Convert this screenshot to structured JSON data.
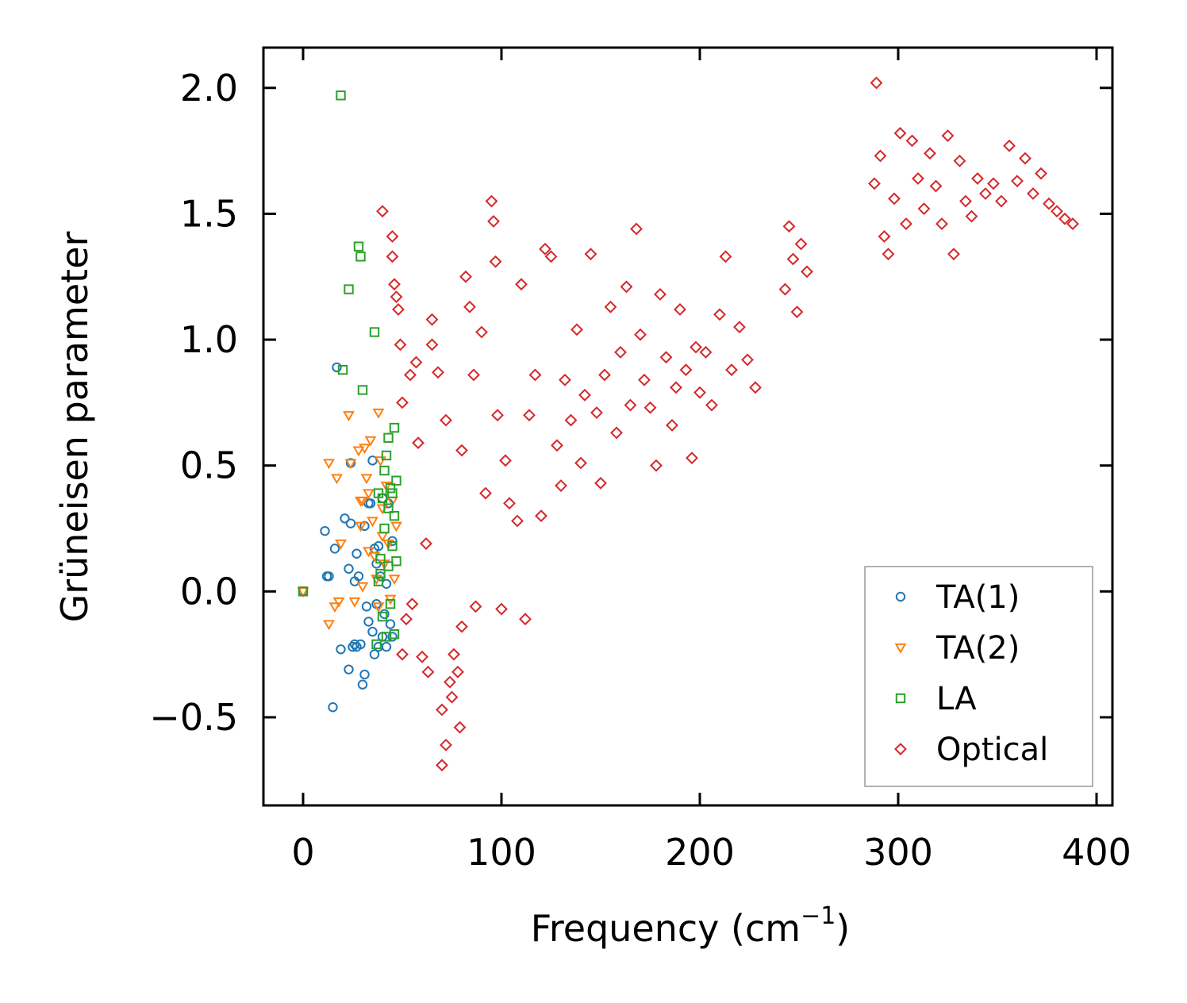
{
  "chart_data": {
    "type": "scatter",
    "title": "",
    "xlabel": "Frequency (cm",
    "xlabel_sup": "−1",
    "xlabel_close": ")",
    "ylabel": "Grüneisen parameter",
    "xlim": [
      -20,
      408
    ],
    "ylim": [
      -0.85,
      2.16
    ],
    "xticks": [
      0,
      100,
      200,
      300,
      400
    ],
    "xtick_labels": [
      "0",
      "100",
      "200",
      "300",
      "400"
    ],
    "yticks": [
      -0.5,
      0.0,
      0.5,
      1.0,
      1.5,
      2.0
    ],
    "ytick_labels": [
      "−0.5",
      "0.0",
      "0.5",
      "1.0",
      "1.5",
      "2.0"
    ],
    "grid": false,
    "legend_position": "lower-right",
    "series": [
      {
        "name": "TA(1)",
        "marker": "circle",
        "color": "#1f77b4",
        "points": [
          [
            0,
            0.0
          ],
          [
            11,
            0.24
          ],
          [
            12,
            0.06
          ],
          [
            13,
            0.06
          ],
          [
            15,
            -0.46
          ],
          [
            16,
            0.17
          ],
          [
            17,
            0.89
          ],
          [
            19,
            -0.23
          ],
          [
            21,
            0.29
          ],
          [
            23,
            0.09
          ],
          [
            23,
            -0.31
          ],
          [
            24,
            0.51
          ],
          [
            24,
            0.27
          ],
          [
            25,
            -0.22
          ],
          [
            26,
            0.04
          ],
          [
            26,
            -0.21
          ],
          [
            27,
            0.15
          ],
          [
            27,
            -0.22
          ],
          [
            28,
            0.06
          ],
          [
            29,
            -0.21
          ],
          [
            30,
            -0.37
          ],
          [
            31,
            0.26
          ],
          [
            31,
            -0.33
          ],
          [
            32,
            -0.06
          ],
          [
            33,
            0.35
          ],
          [
            33,
            -0.12
          ],
          [
            34,
            0.35
          ],
          [
            35,
            -0.16
          ],
          [
            35,
            0.52
          ],
          [
            36,
            0.17
          ],
          [
            36,
            -0.25
          ],
          [
            37,
            0.11
          ],
          [
            37,
            -0.05
          ],
          [
            38,
            0.18
          ],
          [
            38,
            -0.22
          ],
          [
            39,
            0.06
          ],
          [
            40,
            -0.18
          ],
          [
            40,
            0.37
          ],
          [
            41,
            -0.09
          ],
          [
            42,
            0.03
          ],
          [
            42,
            -0.22
          ],
          [
            43,
            0.35
          ],
          [
            44,
            -0.13
          ],
          [
            45,
            0.2
          ],
          [
            45,
            -0.18
          ]
        ]
      },
      {
        "name": "TA(2)",
        "marker": "triangle-down",
        "color": "#ff7f0e",
        "points": [
          [
            0,
            0.0
          ],
          [
            13,
            0.51
          ],
          [
            13,
            -0.13
          ],
          [
            16,
            -0.06
          ],
          [
            17,
            0.45
          ],
          [
            18,
            -0.04
          ],
          [
            19,
            0.19
          ],
          [
            23,
            0.7
          ],
          [
            24,
            0.51
          ],
          [
            26,
            -0.04
          ],
          [
            28,
            0.56
          ],
          [
            29,
            0.36
          ],
          [
            29,
            0.26
          ],
          [
            30,
            0.36
          ],
          [
            30,
            0.02
          ],
          [
            31,
            0.57
          ],
          [
            32,
            0.45
          ],
          [
            33,
            0.16
          ],
          [
            33,
            0.39
          ],
          [
            34,
            0.6
          ],
          [
            35,
            0.28
          ],
          [
            36,
            0.14
          ],
          [
            37,
            0.05
          ],
          [
            38,
            0.71
          ],
          [
            38,
            -0.06
          ],
          [
            39,
            0.52
          ],
          [
            40,
            0.33
          ],
          [
            40,
            0.22
          ],
          [
            41,
            0.11
          ],
          [
            42,
            0.42
          ],
          [
            43,
            0.19
          ],
          [
            44,
            -0.03
          ],
          [
            45,
            0.36
          ],
          [
            46,
            0.05
          ],
          [
            47,
            0.26
          ]
        ]
      },
      {
        "name": "LA",
        "marker": "square",
        "color": "#2ca02c",
        "points": [
          [
            0,
            0.0
          ],
          [
            19,
            1.97
          ],
          [
            20,
            0.88
          ],
          [
            23,
            1.2
          ],
          [
            28,
            1.37
          ],
          [
            29,
            1.33
          ],
          [
            30,
            0.8
          ],
          [
            36,
            1.03
          ],
          [
            37,
            -0.21
          ],
          [
            38,
            0.04
          ],
          [
            38,
            0.39
          ],
          [
            39,
            0.13
          ],
          [
            39,
            0.07
          ],
          [
            40,
            0.37
          ],
          [
            40,
            -0.1
          ],
          [
            41,
            0.48
          ],
          [
            41,
            0.25
          ],
          [
            42,
            0.54
          ],
          [
            42,
            -0.18
          ],
          [
            43,
            0.61
          ],
          [
            43,
            0.33
          ],
          [
            43,
            0.1
          ],
          [
            44,
            0.41
          ],
          [
            44,
            -0.05
          ],
          [
            45,
            0.18
          ],
          [
            45,
            0.39
          ],
          [
            46,
            0.65
          ],
          [
            46,
            0.3
          ],
          [
            46,
            -0.17
          ],
          [
            47,
            0.12
          ],
          [
            47,
            0.44
          ]
        ]
      },
      {
        "name": "Optical",
        "marker": "diamond",
        "color": "#d62728",
        "points": [
          [
            40,
            1.51
          ],
          [
            45,
            1.41
          ],
          [
            45,
            1.33
          ],
          [
            46,
            1.22
          ],
          [
            47,
            1.17
          ],
          [
            48,
            1.12
          ],
          [
            49,
            0.98
          ],
          [
            50,
            -0.25
          ],
          [
            50,
            0.75
          ],
          [
            52,
            -0.11
          ],
          [
            54,
            0.86
          ],
          [
            55,
            -0.05
          ],
          [
            57,
            0.91
          ],
          [
            58,
            0.59
          ],
          [
            60,
            -0.26
          ],
          [
            62,
            0.19
          ],
          [
            63,
            -0.32
          ],
          [
            65,
            1.08
          ],
          [
            65,
            0.98
          ],
          [
            68,
            0.87
          ],
          [
            70,
            -0.47
          ],
          [
            70,
            -0.69
          ],
          [
            72,
            0.68
          ],
          [
            72,
            -0.61
          ],
          [
            74,
            -0.36
          ],
          [
            75,
            -0.42
          ],
          [
            76,
            -0.25
          ],
          [
            78,
            -0.32
          ],
          [
            79,
            -0.54
          ],
          [
            80,
            0.56
          ],
          [
            80,
            -0.14
          ],
          [
            82,
            1.25
          ],
          [
            84,
            1.13
          ],
          [
            86,
            0.86
          ],
          [
            87,
            -0.06
          ],
          [
            90,
            1.03
          ],
          [
            92,
            0.39
          ],
          [
            95,
            1.55
          ],
          [
            96,
            1.47
          ],
          [
            97,
            1.31
          ],
          [
            98,
            0.7
          ],
          [
            100,
            -0.07
          ],
          [
            102,
            0.52
          ],
          [
            104,
            0.35
          ],
          [
            108,
            0.28
          ],
          [
            110,
            1.22
          ],
          [
            112,
            -0.11
          ],
          [
            114,
            0.7
          ],
          [
            117,
            0.86
          ],
          [
            120,
            0.3
          ],
          [
            122,
            1.36
          ],
          [
            125,
            1.33
          ],
          [
            128,
            0.58
          ],
          [
            130,
            0.42
          ],
          [
            132,
            0.84
          ],
          [
            135,
            0.68
          ],
          [
            138,
            1.04
          ],
          [
            140,
            0.51
          ],
          [
            142,
            0.78
          ],
          [
            145,
            1.34
          ],
          [
            148,
            0.71
          ],
          [
            150,
            0.43
          ],
          [
            152,
            0.86
          ],
          [
            155,
            1.13
          ],
          [
            158,
            0.63
          ],
          [
            160,
            0.95
          ],
          [
            163,
            1.21
          ],
          [
            165,
            0.74
          ],
          [
            168,
            1.44
          ],
          [
            170,
            1.02
          ],
          [
            172,
            0.84
          ],
          [
            175,
            0.73
          ],
          [
            178,
            0.5
          ],
          [
            180,
            1.18
          ],
          [
            183,
            0.93
          ],
          [
            186,
            0.66
          ],
          [
            188,
            0.81
          ],
          [
            190,
            1.12
          ],
          [
            193,
            0.88
          ],
          [
            196,
            0.53
          ],
          [
            198,
            0.97
          ],
          [
            200,
            0.79
          ],
          [
            203,
            0.95
          ],
          [
            206,
            0.74
          ],
          [
            210,
            1.1
          ],
          [
            213,
            1.33
          ],
          [
            216,
            0.88
          ],
          [
            220,
            1.05
          ],
          [
            224,
            0.92
          ],
          [
            228,
            0.81
          ],
          [
            243,
            1.2
          ],
          [
            245,
            1.45
          ],
          [
            247,
            1.32
          ],
          [
            249,
            1.11
          ],
          [
            251,
            1.38
          ],
          [
            254,
            1.27
          ],
          [
            288,
            1.62
          ],
          [
            289,
            2.02
          ],
          [
            291,
            1.73
          ],
          [
            293,
            1.41
          ],
          [
            295,
            1.34
          ],
          [
            298,
            1.56
          ],
          [
            301,
            1.82
          ],
          [
            304,
            1.46
          ],
          [
            307,
            1.79
          ],
          [
            310,
            1.64
          ],
          [
            313,
            1.52
          ],
          [
            316,
            1.74
          ],
          [
            319,
            1.61
          ],
          [
            322,
            1.46
          ],
          [
            325,
            1.81
          ],
          [
            328,
            1.34
          ],
          [
            331,
            1.71
          ],
          [
            334,
            1.55
          ],
          [
            337,
            1.49
          ],
          [
            340,
            1.64
          ],
          [
            344,
            1.58
          ],
          [
            348,
            1.62
          ],
          [
            352,
            1.55
          ],
          [
            356,
            1.77
          ],
          [
            360,
            1.63
          ],
          [
            364,
            1.72
          ],
          [
            368,
            1.58
          ],
          [
            372,
            1.66
          ],
          [
            376,
            1.54
          ],
          [
            380,
            1.51
          ],
          [
            384,
            1.48
          ],
          [
            388,
            1.46
          ]
        ]
      }
    ]
  }
}
